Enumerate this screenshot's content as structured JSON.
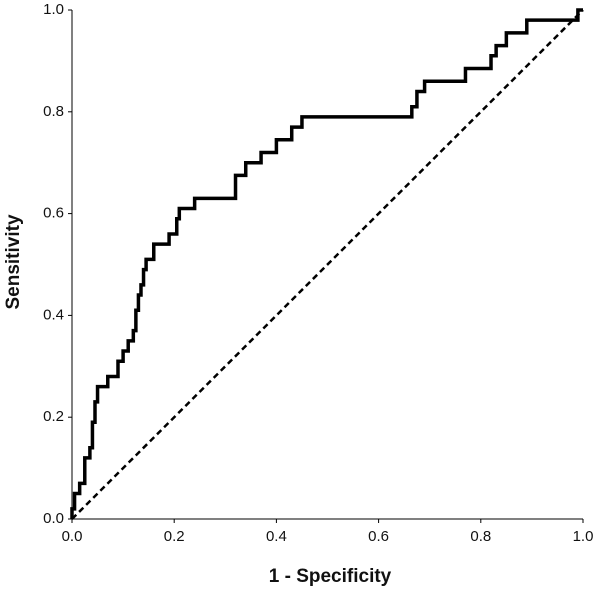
{
  "chart_data": {
    "type": "line",
    "x_label": "1 - Specificity",
    "y_label": "Sensitivity",
    "xlim": [
      0,
      1
    ],
    "ylim": [
      0,
      1
    ],
    "xticks": [
      {
        "value": 0,
        "label": "0.0"
      },
      {
        "value": 0.2,
        "label": "0.2"
      },
      {
        "value": 0.4,
        "label": "0.4"
      },
      {
        "value": 0.6,
        "label": "0.6"
      },
      {
        "value": 0.8,
        "label": "0.8"
      },
      {
        "value": 1,
        "label": "1.0"
      }
    ],
    "yticks": [
      {
        "value": 0,
        "label": "0.0"
      },
      {
        "value": 0.2,
        "label": "0.2"
      },
      {
        "value": 0.4,
        "label": "0.4"
      },
      {
        "value": 0.6,
        "label": "0.6"
      },
      {
        "value": 0.8,
        "label": "0.8"
      },
      {
        "value": 1,
        "label": "1.0"
      }
    ],
    "grid": false,
    "series": [
      {
        "color": "#000000",
        "dash": false,
        "x": [
          0,
          0,
          0.005,
          0.005,
          0.015,
          0.015,
          0.025,
          0.025,
          0.035,
          0.035,
          0.04,
          0.04,
          0.045,
          0.045,
          0.05,
          0.05,
          0.07,
          0.07,
          0.09,
          0.09,
          0.1,
          0.1,
          0.11,
          0.11,
          0.12,
          0.12,
          0.125,
          0.125,
          0.13,
          0.13,
          0.135,
          0.135,
          0.14,
          0.14,
          0.145,
          0.145,
          0.16,
          0.16,
          0.19,
          0.19,
          0.205,
          0.205,
          0.21,
          0.21,
          0.225,
          0.225,
          0.24,
          0.24,
          0.32,
          0.32,
          0.34,
          0.34,
          0.37,
          0.37,
          0.4,
          0.4,
          0.43,
          0.43,
          0.45,
          0.45,
          0.665,
          0.665,
          0.675,
          0.675,
          0.69,
          0.69,
          0.77,
          0.77,
          0.82,
          0.82,
          0.83,
          0.83,
          0.85,
          0.85,
          0.89,
          0.89,
          0.99,
          0.99,
          1
        ],
        "values": [
          0,
          0.02,
          0.02,
          0.05,
          0.05,
          0.07,
          0.07,
          0.12,
          0.12,
          0.14,
          0.14,
          0.19,
          0.19,
          0.23,
          0.23,
          0.26,
          0.26,
          0.28,
          0.28,
          0.31,
          0.31,
          0.33,
          0.33,
          0.35,
          0.35,
          0.37,
          0.37,
          0.41,
          0.41,
          0.44,
          0.44,
          0.46,
          0.46,
          0.49,
          0.49,
          0.51,
          0.51,
          0.54,
          0.54,
          0.56,
          0.56,
          0.59,
          0.59,
          0.61,
          0.61,
          0.61,
          0.61,
          0.63,
          0.63,
          0.675,
          0.675,
          0.7,
          0.7,
          0.72,
          0.72,
          0.745,
          0.745,
          0.77,
          0.77,
          0.79,
          0.79,
          0.81,
          0.81,
          0.84,
          0.84,
          0.86,
          0.86,
          0.885,
          0.885,
          0.91,
          0.91,
          0.93,
          0.93,
          0.955,
          0.955,
          0.98,
          0.98,
          1,
          1
        ]
      },
      {
        "color": "#000000",
        "dash": true,
        "x": [
          0,
          1
        ],
        "values": [
          0,
          1
        ]
      }
    ]
  }
}
